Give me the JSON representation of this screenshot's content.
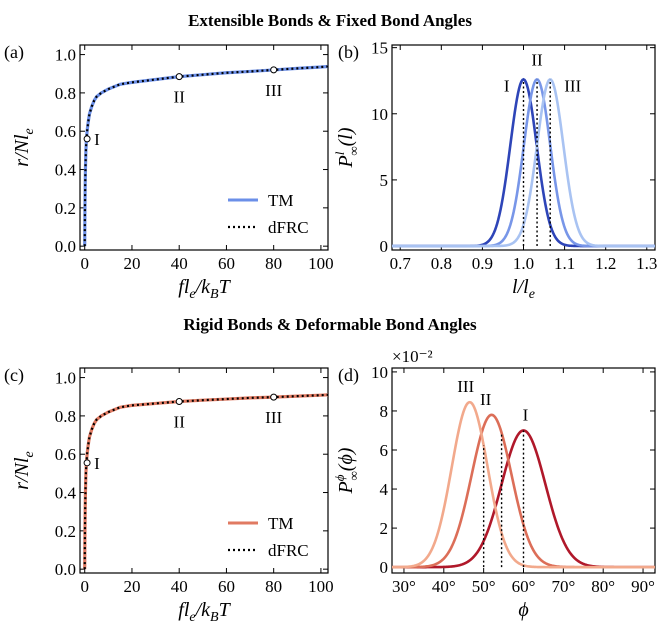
{
  "figure": {
    "heading_top": "Extensible Bonds & Fixed Bond Angles",
    "heading_bottom": "Rigid Bonds & Deformable Bond Angles"
  },
  "chart_data": [
    {
      "panel": "(a)",
      "type": "line",
      "xlabel": "fl_e/k_BT",
      "ylabel": "r/Nl_e",
      "xlim": [
        -2,
        103
      ],
      "ylim": [
        -0.02,
        1.05
      ],
      "xticks": [
        "0",
        "20",
        "40",
        "60",
        "80",
        "100"
      ],
      "yticks": [
        "0.0",
        "0.2",
        "0.4",
        "0.6",
        "0.8",
        "1.0"
      ],
      "legend": {
        "position": "lower-right",
        "entries": [
          "TM",
          "dFRC"
        ]
      },
      "series": [
        {
          "name": "TM",
          "color": "#6B8FE8",
          "style": "solid",
          "x": [
            0,
            0.05,
            0.1,
            0.2,
            0.3,
            0.5,
            0.7,
            1,
            1.5,
            2,
            3,
            4,
            5,
            7,
            10,
            15,
            20,
            30,
            40,
            50,
            60,
            70,
            80,
            90,
            100,
            103
          ],
          "y": [
            0,
            0.11,
            0.2,
            0.32,
            0.4,
            0.5,
            0.55,
            0.6,
            0.65,
            0.69,
            0.73,
            0.76,
            0.78,
            0.8,
            0.82,
            0.845,
            0.855,
            0.87,
            0.885,
            0.895,
            0.905,
            0.912,
            0.92,
            0.928,
            0.935,
            0.938
          ]
        },
        {
          "name": "dFRC",
          "color": "#000000",
          "style": "dotted",
          "x": [
            0,
            0.05,
            0.1,
            0.2,
            0.3,
            0.5,
            0.7,
            1,
            1.5,
            2,
            3,
            4,
            5,
            7,
            10,
            15,
            20,
            30,
            40,
            50,
            60,
            70,
            80,
            90,
            100,
            103
          ],
          "y": [
            0,
            0.11,
            0.2,
            0.32,
            0.4,
            0.5,
            0.55,
            0.6,
            0.65,
            0.69,
            0.73,
            0.76,
            0.78,
            0.8,
            0.82,
            0.845,
            0.855,
            0.87,
            0.885,
            0.895,
            0.905,
            0.912,
            0.92,
            0.928,
            0.935,
            0.938
          ]
        }
      ],
      "markers": [
        {
          "label": "I",
          "x": 1,
          "y": 0.56
        },
        {
          "label": "II",
          "x": 40,
          "y": 0.885
        },
        {
          "label": "III",
          "x": 80,
          "y": 0.92
        }
      ]
    },
    {
      "panel": "(b)",
      "type": "line",
      "xlabel": "l/l_e",
      "ylabel": "P_∞^l(l)",
      "xlim": [
        0.68,
        1.32
      ],
      "ylim": [
        -0.3,
        15.2
      ],
      "xticks": [
        "0.7",
        "0.8",
        "0.9",
        "1.0",
        "1.1",
        "1.2",
        "1.3"
      ],
      "yticks": [
        "0",
        "5",
        "10",
        "15"
      ],
      "series": [
        {
          "name": "I",
          "color": "#2E45B8",
          "peak_x": 1.0,
          "peak_y": 12.6,
          "sigma": 0.032
        },
        {
          "name": "II",
          "color": "#7896E8",
          "peak_x": 1.033,
          "peak_y": 12.6,
          "sigma": 0.032
        },
        {
          "name": "III",
          "color": "#A9C3F2",
          "peak_x": 1.065,
          "peak_y": 12.6,
          "sigma": 0.032
        }
      ],
      "vlines": [
        1.0,
        1.033,
        1.065
      ]
    },
    {
      "panel": "(c)",
      "type": "line",
      "xlabel": "fl_e/k_BT",
      "ylabel": "r/Nl_e",
      "xlim": [
        -2,
        103
      ],
      "ylim": [
        -0.02,
        1.05
      ],
      "xticks": [
        "0",
        "20",
        "40",
        "60",
        "80",
        "100"
      ],
      "yticks": [
        "0.0",
        "0.2",
        "0.4",
        "0.6",
        "0.8",
        "1.0"
      ],
      "legend": {
        "position": "lower-right",
        "entries": [
          "TM",
          "dFRC"
        ]
      },
      "series": [
        {
          "name": "TM",
          "color": "#E07A62",
          "style": "solid",
          "x": [
            0,
            0.05,
            0.1,
            0.2,
            0.3,
            0.5,
            0.7,
            1,
            1.5,
            2,
            3,
            4,
            5,
            7,
            10,
            15,
            20,
            30,
            40,
            50,
            60,
            70,
            80,
            90,
            100,
            103
          ],
          "y": [
            0,
            0.11,
            0.2,
            0.32,
            0.4,
            0.5,
            0.55,
            0.6,
            0.65,
            0.69,
            0.73,
            0.76,
            0.78,
            0.8,
            0.82,
            0.845,
            0.855,
            0.865,
            0.875,
            0.882,
            0.888,
            0.894,
            0.898,
            0.903,
            0.908,
            0.91
          ]
        },
        {
          "name": "dFRC",
          "color": "#000000",
          "style": "dotted",
          "x": [
            0,
            0.05,
            0.1,
            0.2,
            0.3,
            0.5,
            0.7,
            1,
            1.5,
            2,
            3,
            4,
            5,
            7,
            10,
            15,
            20,
            30,
            40,
            50,
            60,
            70,
            80,
            90,
            100,
            103
          ],
          "y": [
            0,
            0.11,
            0.2,
            0.32,
            0.4,
            0.5,
            0.55,
            0.6,
            0.65,
            0.69,
            0.73,
            0.76,
            0.78,
            0.8,
            0.82,
            0.845,
            0.855,
            0.865,
            0.875,
            0.882,
            0.888,
            0.894,
            0.898,
            0.903,
            0.908,
            0.91
          ]
        }
      ],
      "markers": [
        {
          "label": "I",
          "x": 1,
          "y": 0.555
        },
        {
          "label": "II",
          "x": 40,
          "y": 0.875
        },
        {
          "label": "III",
          "x": 80,
          "y": 0.898
        }
      ]
    },
    {
      "panel": "(d)",
      "type": "line",
      "xlabel": "ϕ",
      "ylabel": "P_∞^ϕ(ϕ)",
      "multiplier": "×10⁻²",
      "xlim": [
        27,
        93
      ],
      "ylim": [
        -0.3,
        10.2
      ],
      "xticks": [
        "30°",
        "40°",
        "50°",
        "60°",
        "70°",
        "80°",
        "90°"
      ],
      "yticks": [
        "0",
        "2",
        "4",
        "6",
        "8",
        "10"
      ],
      "series": [
        {
          "name": "I",
          "color": "#B0182A",
          "peak_x": 60,
          "peak_y": 7.0,
          "sigma": 5.5
        },
        {
          "name": "II",
          "color": "#DC6E58",
          "peak_x": 52,
          "peak_y": 7.8,
          "sigma": 5.0
        },
        {
          "name": "III",
          "color": "#F2A98C",
          "peak_x": 46.5,
          "peak_y": 8.45,
          "sigma": 4.5
        }
      ],
      "vlines": [
        60,
        54.5,
        50
      ]
    }
  ]
}
